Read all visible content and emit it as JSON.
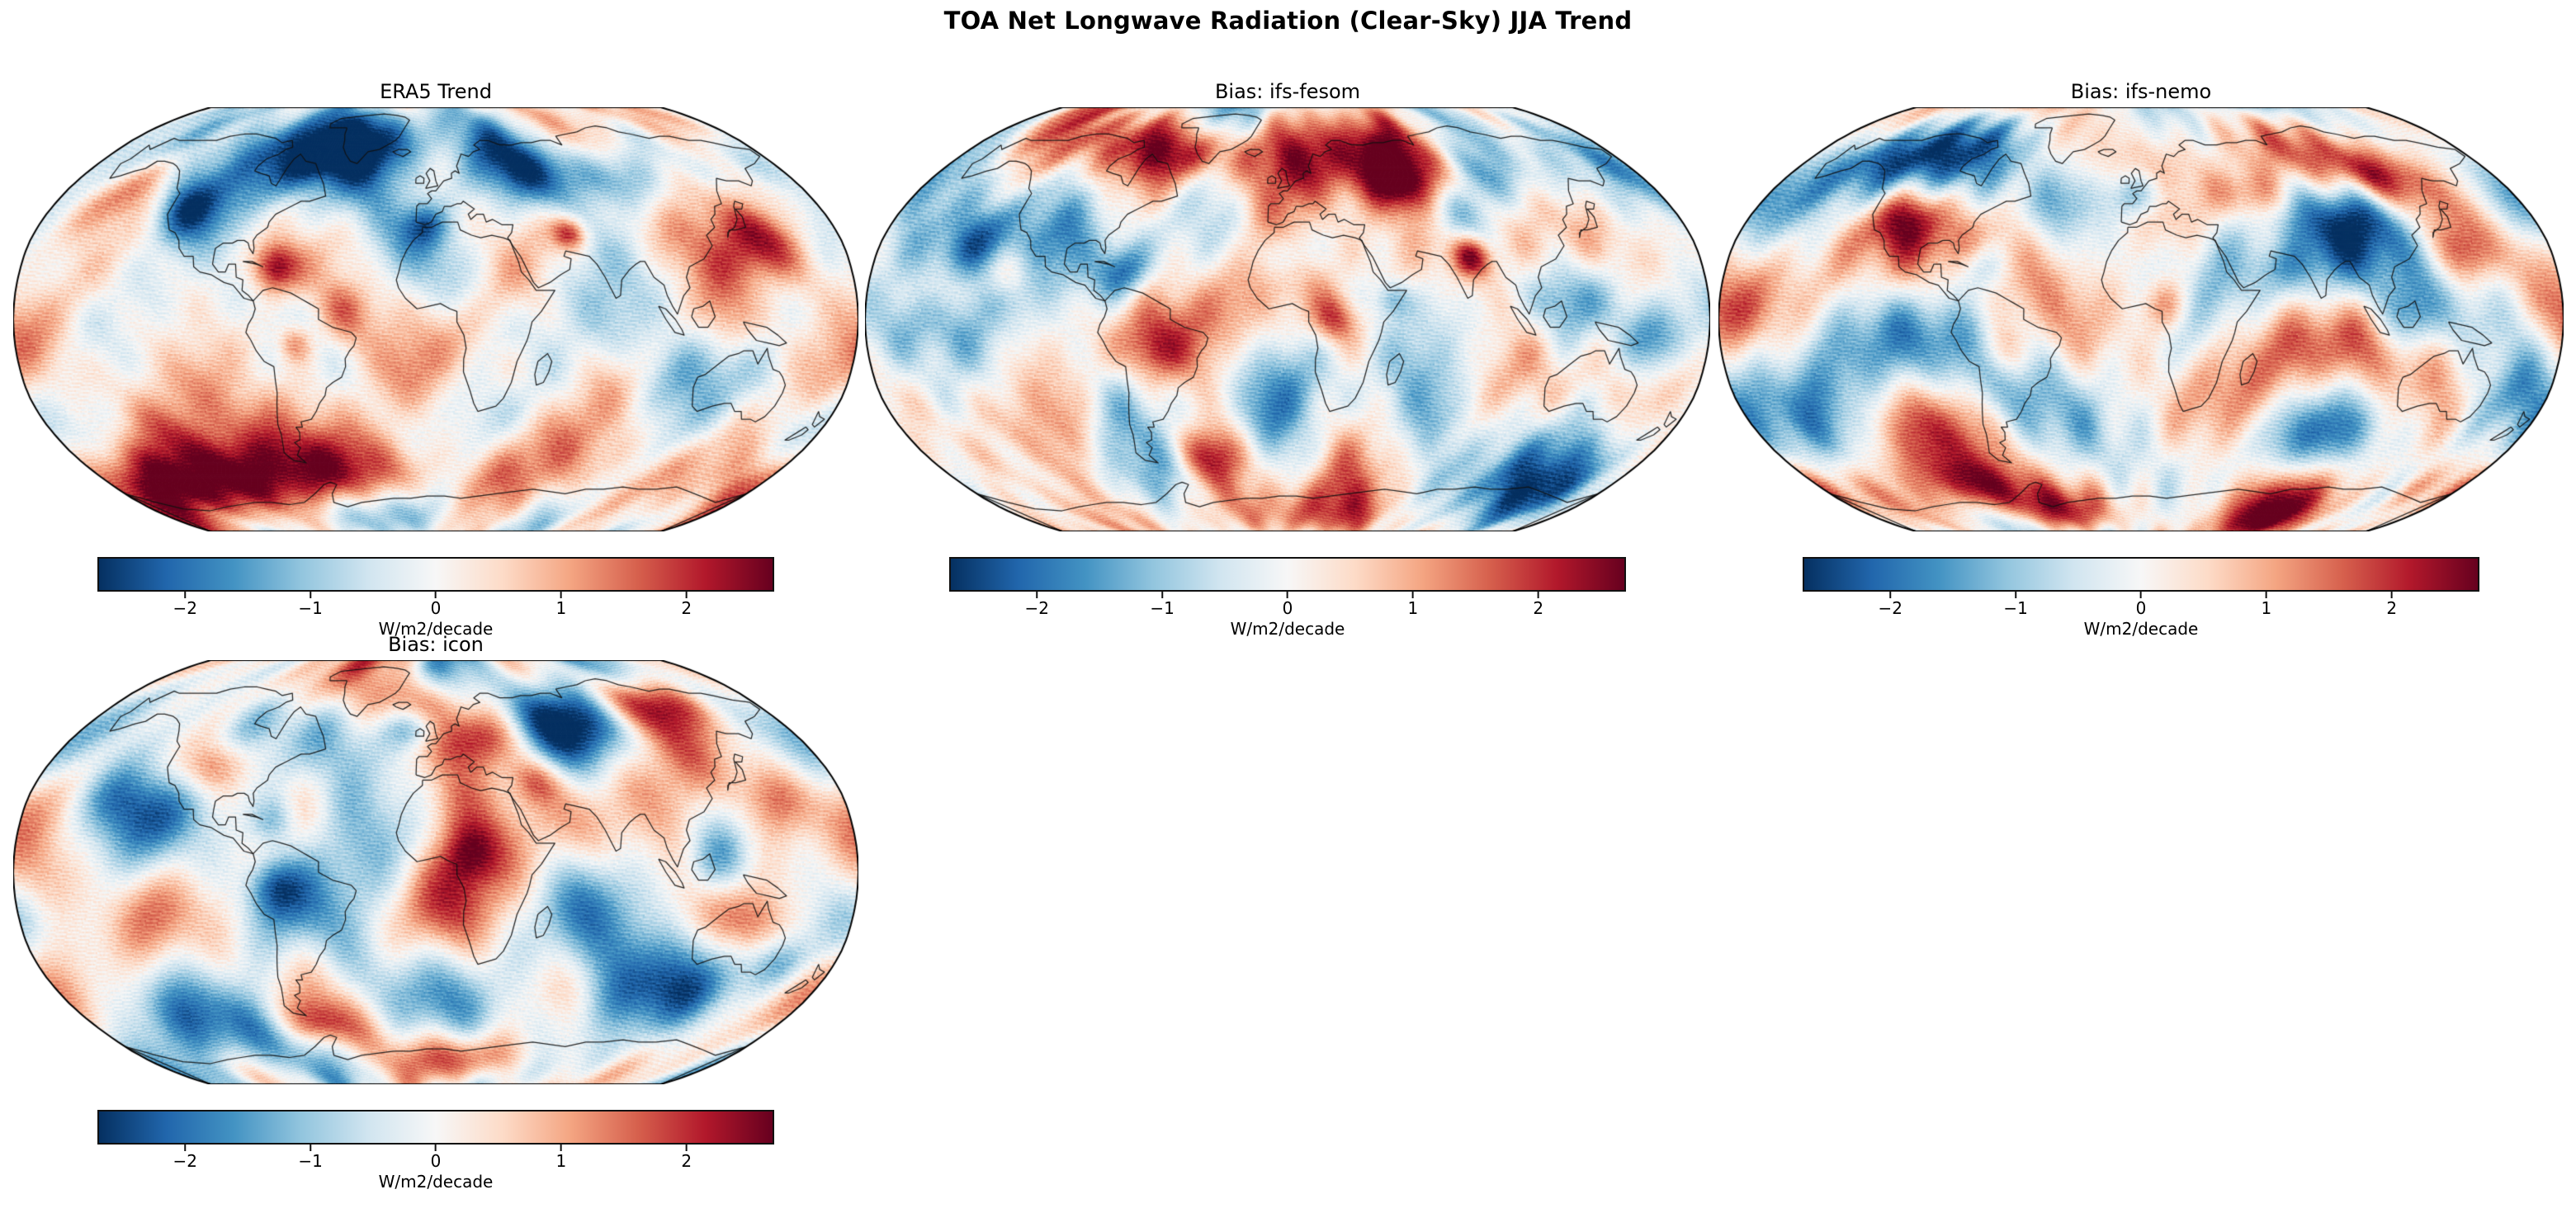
{
  "figure": {
    "suptitle": "TOA Net Longwave Radiation (Clear-Sky) JJA Trend"
  },
  "chart_data": {
    "type": "heatmap",
    "subtype": "global-trend-maps",
    "projection": "Robinson",
    "variable": "TOA Net Longwave Radiation (Clear-Sky) JJA Trend",
    "grid": "2 rows x 3 cols, 4 panels used",
    "colorbar": {
      "label": "W/m2/decade",
      "ticks": [
        -2,
        -1,
        0,
        1,
        2
      ],
      "tick_labels": [
        "−2",
        "−1",
        "0",
        "1",
        "2"
      ],
      "vmin": -2.7,
      "vmax": 2.7,
      "cmap": "RdBu_r",
      "cmap_stops": [
        "#053061",
        "#2166ac",
        "#4393c3",
        "#92c5de",
        "#d1e5f0",
        "#f7f7f7",
        "#fddbc7",
        "#f4a582",
        "#d6604d",
        "#b2182b",
        "#67001f"
      ]
    },
    "hotspot_fields": [
      "lon",
      "lat",
      "radius_deg",
      "amplitude_W_m2_decade"
    ],
    "panels": [
      {
        "title": "ERA5 Trend",
        "hotspots": [
          [
            -115,
            42,
            16,
            -2.2
          ],
          [
            -75,
            62,
            20,
            -1.9
          ],
          [
            -45,
            70,
            18,
            -1.6
          ],
          [
            45,
            57,
            20,
            -2.1
          ],
          [
            85,
            55,
            18,
            -2.2
          ],
          [
            20,
            72,
            25,
            -1.1
          ],
          [
            -5,
            36,
            10,
            -1.3
          ],
          [
            170,
            62,
            18,
            -1.3
          ],
          [
            -70,
            20,
            12,
            2.3
          ],
          [
            -60,
            -9,
            10,
            1.7
          ],
          [
            150,
            28,
            22,
            2.3
          ],
          [
            125,
            -2,
            18,
            1.7
          ],
          [
            60,
            33,
            8,
            2.0
          ],
          [
            -40,
            4,
            14,
            1.1
          ],
          [
            -150,
            48,
            20,
            1.0
          ],
          [
            -170,
            -25,
            25,
            0.9
          ],
          [
            35,
            -20,
            18,
            0.8
          ],
          [
            -90,
            -62,
            25,
            2.4
          ],
          [
            -30,
            -60,
            20,
            1.5
          ],
          [
            60,
            -60,
            30,
            1.7
          ],
          [
            160,
            -63,
            25,
            1.7
          ],
          [
            -140,
            -65,
            20,
            1.8
          ],
          [
            -40,
            -76,
            18,
            -1.9
          ]
        ]
      },
      {
        "title": "Bias: ifs-fesom",
        "hotspots": [
          [
            -100,
            70,
            22,
            2.3
          ],
          [
            -45,
            64,
            14,
            1.6
          ],
          [
            35,
            62,
            22,
            2.0
          ],
          [
            60,
            52,
            15,
            1.4
          ],
          [
            75,
            42,
            18,
            -2.2
          ],
          [
            80,
            24,
            10,
            2.4
          ],
          [
            120,
            8,
            20,
            -2.0
          ],
          [
            155,
            -8,
            18,
            -1.6
          ],
          [
            -70,
            18,
            14,
            -2.1
          ],
          [
            -140,
            30,
            18,
            -1.4
          ],
          [
            -150,
            12,
            15,
            1.5
          ],
          [
            -120,
            18,
            12,
            1.4
          ],
          [
            -60,
            -12,
            16,
            1.6
          ],
          [
            -35,
            -52,
            15,
            1.8
          ],
          [
            10,
            -78,
            22,
            2.6
          ],
          [
            60,
            -55,
            20,
            0.9
          ],
          [
            -100,
            -62,
            25,
            -1.5
          ],
          [
            150,
            -70,
            25,
            -1.6
          ],
          [
            0,
            25,
            12,
            -1.2
          ],
          [
            45,
            8,
            10,
            -1.5
          ],
          [
            20,
            0,
            12,
            1.6
          ],
          [
            -170,
            -40,
            25,
            -1.0
          ],
          [
            105,
            55,
            15,
            -1.0
          ]
        ]
      },
      {
        "title": "Bias: ifs-nemo",
        "hotspots": [
          [
            -108,
            40,
            16,
            2.0
          ],
          [
            -135,
            62,
            18,
            -1.6
          ],
          [
            -70,
            20,
            14,
            -1.9
          ],
          [
            0,
            48,
            12,
            -1.8
          ],
          [
            52,
            47,
            14,
            1.9
          ],
          [
            100,
            42,
            18,
            -1.7
          ],
          [
            120,
            55,
            15,
            1.6
          ],
          [
            60,
            30,
            12,
            1.4
          ],
          [
            10,
            6,
            14,
            1.7
          ],
          [
            -60,
            -12,
            14,
            1.3
          ],
          [
            115,
            0,
            18,
            -2.0
          ],
          [
            165,
            -30,
            20,
            -1.4
          ],
          [
            -40,
            45,
            18,
            -1.1
          ],
          [
            175,
            42,
            20,
            -1.4
          ],
          [
            -90,
            -64,
            14,
            2.2
          ],
          [
            -60,
            -75,
            15,
            1.8
          ],
          [
            100,
            -72,
            30,
            1.5
          ],
          [
            170,
            -65,
            15,
            1.3
          ],
          [
            -150,
            -45,
            30,
            -1.2
          ],
          [
            80,
            -45,
            25,
            -1.0
          ],
          [
            -180,
            2,
            20,
            1.3
          ],
          [
            140,
            25,
            15,
            1.3
          ]
        ]
      },
      {
        "title": "Bias: icon",
        "hotspots": [
          [
            75,
            58,
            22,
            -2.5
          ],
          [
            120,
            66,
            15,
            2.0
          ],
          [
            25,
            52,
            15,
            1.7
          ],
          [
            -10,
            55,
            10,
            -1.5
          ],
          [
            45,
            35,
            12,
            1.5
          ],
          [
            -105,
            40,
            14,
            1.7
          ],
          [
            -95,
            58,
            18,
            -1.6
          ],
          [
            -20,
            68,
            15,
            1.2
          ],
          [
            15,
            8,
            16,
            1.9
          ],
          [
            5,
            25,
            18,
            1.2
          ],
          [
            -70,
            20,
            12,
            -1.5
          ],
          [
            -70,
            -5,
            15,
            -1.5
          ],
          [
            120,
            3,
            18,
            -1.9
          ],
          [
            150,
            28,
            18,
            1.5
          ],
          [
            140,
            -20,
            15,
            1.1
          ],
          [
            155,
            -35,
            12,
            -1.2
          ],
          [
            -170,
            -3,
            20,
            1.3
          ],
          [
            -120,
            -62,
            28,
            -2.3
          ],
          [
            -60,
            -58,
            12,
            1.6
          ],
          [
            20,
            -72,
            15,
            2.0
          ],
          [
            90,
            -40,
            25,
            -1.3
          ],
          [
            -30,
            -42,
            25,
            -1.4
          ],
          [
            60,
            -60,
            20,
            -1.0
          ],
          [
            100,
            -60,
            18,
            1.2
          ],
          [
            -140,
            28,
            18,
            -1.3
          ]
        ]
      }
    ]
  }
}
